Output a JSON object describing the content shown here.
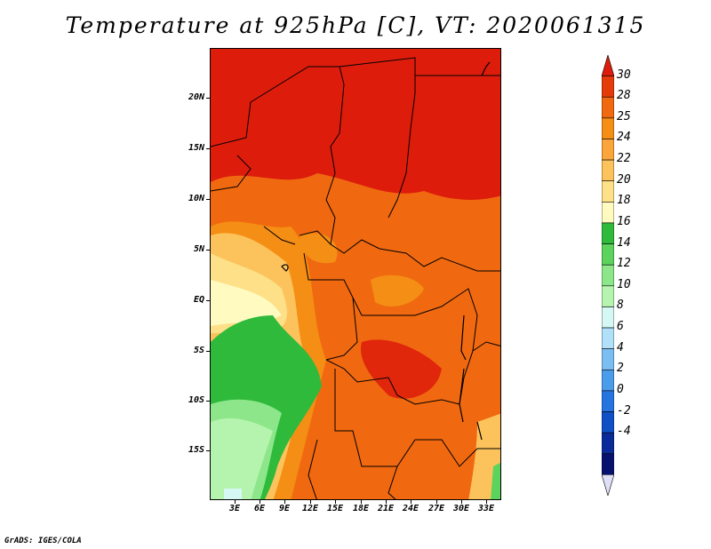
{
  "title": "Temperature at 925hPa [C], VT: 2020061315",
  "credit": "GrADS: IGES/COLA",
  "map": {
    "y_labels": [
      "20N",
      "15N",
      "10N",
      "5N",
      "EQ",
      "5S",
      "10S",
      "15S"
    ],
    "x_labels": [
      "3E",
      "6E",
      "9E",
      "12E",
      "15E",
      "18E",
      "21E",
      "24E",
      "27E",
      "30E",
      "33E"
    ],
    "region": "Central and West-Central Africa"
  },
  "colorbar": {
    "labels": [
      "30",
      "28",
      "25",
      "24",
      "22",
      "20",
      "18",
      "16",
      "14",
      "12",
      "10",
      "8",
      "6",
      "4",
      "2",
      "0",
      "-2",
      "-4"
    ],
    "colors": [
      "#dd1c0c",
      "#e53a0a",
      "#f06910",
      "#f58e14",
      "#fba53a",
      "#fcc35c",
      "#fde087",
      "#fefac0",
      "#2fba3c",
      "#5bd35c",
      "#8de78a",
      "#b5f4ae",
      "#d5f8f5",
      "#b1e0fa",
      "#7bbef2",
      "#4c9cec",
      "#2674de",
      "#1050c6",
      "#0a2a9a",
      "#06126e",
      "#dfdff8"
    ]
  }
}
